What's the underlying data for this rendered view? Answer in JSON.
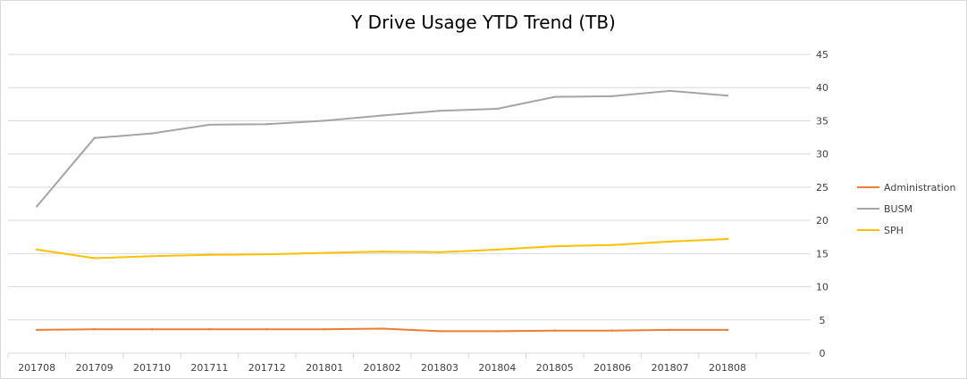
{
  "chart_data": {
    "type": "line",
    "title": "Y Drive Usage YTD Trend (TB)",
    "xlabel": "",
    "ylabel": "",
    "categories": [
      "201708",
      "201709",
      "201710",
      "201711",
      "201712",
      "201801",
      "201802",
      "201803",
      "201804",
      "201805",
      "201806",
      "201807",
      "201808"
    ],
    "ylim": [
      0,
      45
    ],
    "yticks": [
      0,
      5,
      10,
      15,
      20,
      25,
      30,
      35,
      40,
      45
    ],
    "y_axis_side": "right",
    "grid": true,
    "legend_position": "right",
    "series": [
      {
        "name": "Administration",
        "color": "#ED7D31",
        "values": [
          3.5,
          3.6,
          3.6,
          3.6,
          3.6,
          3.6,
          3.7,
          3.3,
          3.3,
          3.4,
          3.4,
          3.5,
          3.5
        ]
      },
      {
        "name": "BUSM",
        "color": "#A5A5A5",
        "values": [
          22.1,
          32.4,
          33.1,
          34.4,
          34.5,
          35.0,
          35.8,
          36.5,
          36.8,
          38.6,
          38.7,
          39.5,
          38.8
        ]
      },
      {
        "name": "SPH",
        "color": "#FFC000",
        "values": [
          15.6,
          14.3,
          14.6,
          14.8,
          14.9,
          15.1,
          15.3,
          15.2,
          15.6,
          16.1,
          16.3,
          16.8,
          17.2
        ]
      }
    ]
  }
}
